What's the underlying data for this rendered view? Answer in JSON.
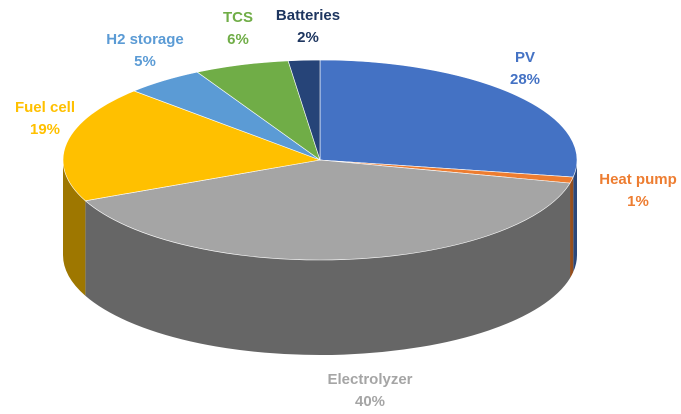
{
  "chart_data": {
    "type": "pie3d",
    "categories": [
      "PV",
      "Heat pump",
      "Electrolyzer",
      "Fuel cell",
      "H2 storage",
      "TCS",
      "Batteries"
    ],
    "values": [
      28,
      1,
      40,
      19,
      5,
      6,
      2
    ],
    "value_labels": [
      "28%",
      "1%",
      "40%",
      "19%",
      "5%",
      "6%",
      "2%"
    ],
    "colors": [
      "#4472c4",
      "#ed7d31",
      "#a5a5a5",
      "#ffc000",
      "#5b9bd5",
      "#70ad47",
      "#264478"
    ]
  }
}
